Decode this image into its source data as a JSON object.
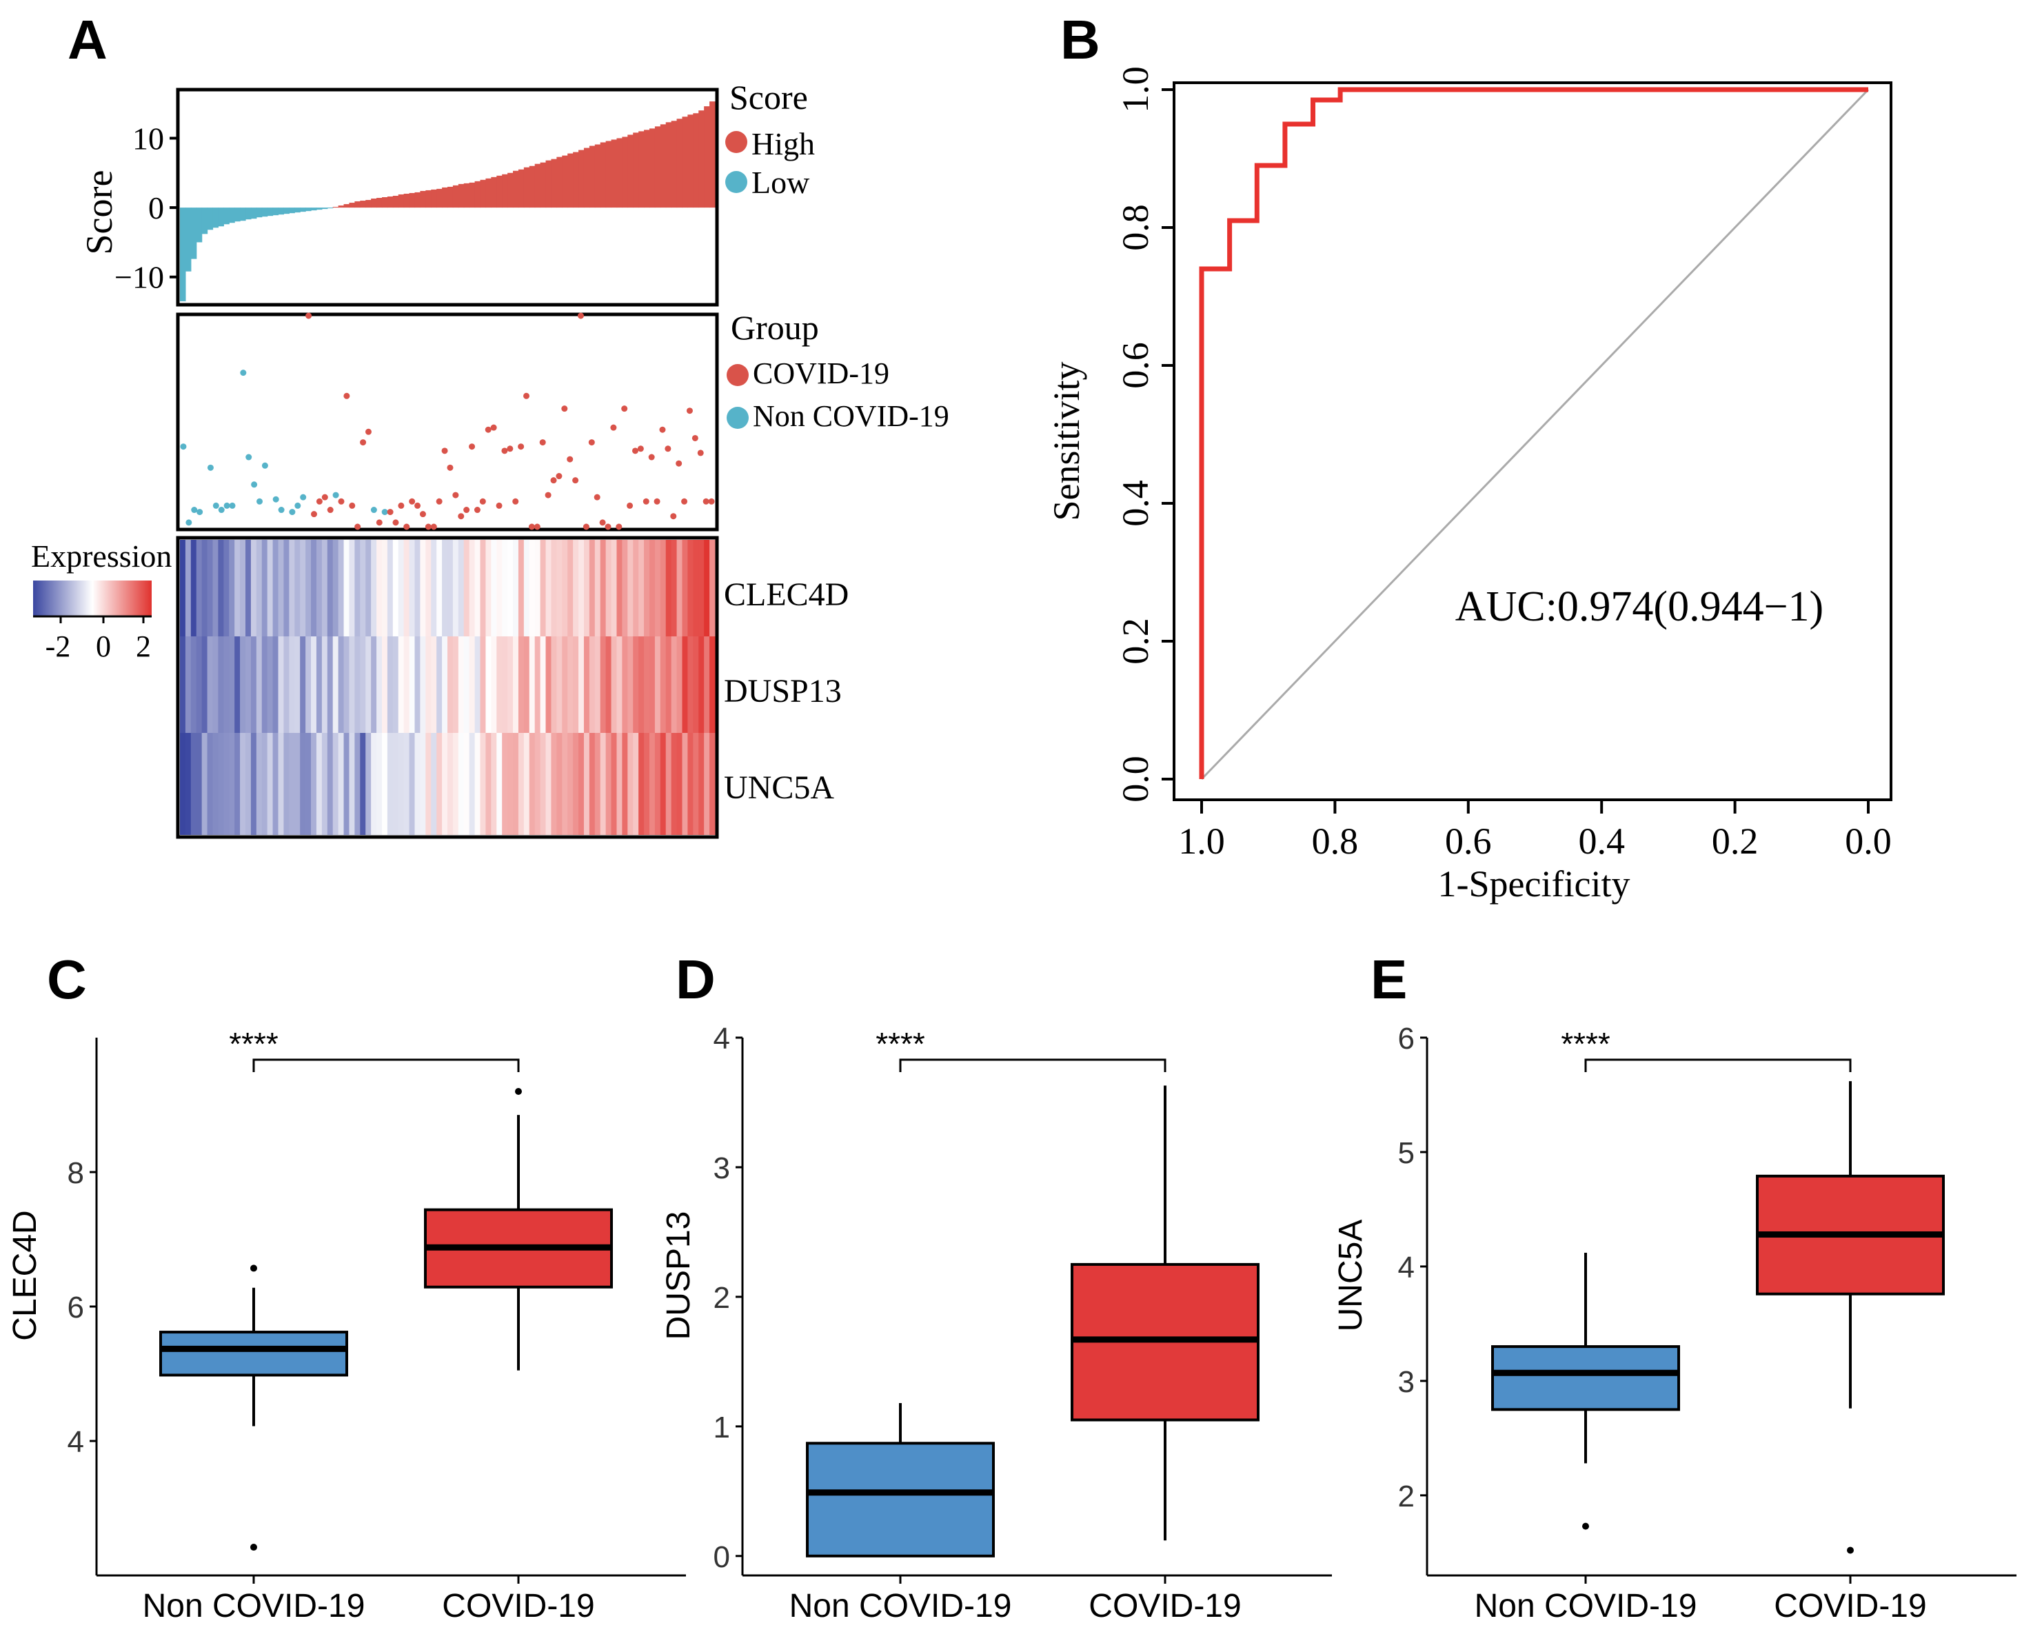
{
  "colors": {
    "high": "#d9534a",
    "low": "#56b3c9",
    "roc": "#e8322e",
    "box_non": "#4f8fc8",
    "box_covid": "#e13a3a",
    "heat_low": "#3a46a0",
    "heat_mid": "#ffffff",
    "heat_high": "#e0322e"
  },
  "panel_labels": [
    "A",
    "B",
    "C",
    "D",
    "E"
  ],
  "chart_data": [
    {
      "id": "A-score",
      "type": "bar",
      "ylabel": "Score",
      "ylim": [
        -14,
        17
      ],
      "yticks": [
        -10,
        0,
        10
      ],
      "values": [
        -13.5,
        -9.2,
        -7.4,
        -5.0,
        -3.8,
        -3.2,
        -2.9,
        -2.7,
        -2.4,
        -2.2,
        -2.0,
        -1.9,
        -1.7,
        -1.6,
        -1.4,
        -1.3,
        -1.2,
        -1.1,
        -1.0,
        -0.9,
        -0.8,
        -0.7,
        -0.6,
        -0.5,
        -0.4,
        -0.3,
        -0.2,
        -0.1,
        0.1,
        0.3,
        0.5,
        0.7,
        0.9,
        1.0,
        1.1,
        1.3,
        1.4,
        1.5,
        1.6,
        1.7,
        1.9,
        2.0,
        2.1,
        2.2,
        2.4,
        2.5,
        2.6,
        2.7,
        2.9,
        3.0,
        3.2,
        3.4,
        3.5,
        3.6,
        3.8,
        4.0,
        4.2,
        4.4,
        4.6,
        4.8,
        5.0,
        5.3,
        5.5,
        5.8,
        6.0,
        6.3,
        6.5,
        6.8,
        7.0,
        7.3,
        7.5,
        7.8,
        8.0,
        8.3,
        8.6,
        8.9,
        9.1,
        9.4,
        9.6,
        9.8,
        10.0,
        10.2,
        10.5,
        10.8,
        11.0,
        11.2,
        11.4,
        11.7,
        12.0,
        12.3,
        12.5,
        12.8,
        13.1,
        13.4,
        13.6,
        14.0,
        14.6,
        15.3
      ],
      "legend": {
        "title": "Score",
        "entries": [
          "High",
          "Low"
        ]
      }
    },
    {
      "id": "A-group",
      "type": "scatter",
      "legend": {
        "title": "Group",
        "entries": [
          "COVID-19",
          "Non COVID-19"
        ]
      },
      "non_covid_points": [
        [
          0,
          0.38
        ],
        [
          1,
          0.02
        ],
        [
          2,
          0.08
        ],
        [
          3,
          0.07
        ],
        [
          5,
          0.28
        ],
        [
          6,
          0.1
        ],
        [
          7,
          0.08
        ],
        [
          8,
          0.1
        ],
        [
          9,
          0.1
        ],
        [
          11,
          0.73
        ],
        [
          12,
          0.33
        ],
        [
          13,
          0.2
        ],
        [
          14,
          0.12
        ],
        [
          15,
          0.29
        ],
        [
          17,
          0.13
        ],
        [
          18,
          0.08
        ],
        [
          20,
          0.07
        ],
        [
          21,
          0.1
        ],
        [
          22,
          0.14
        ],
        [
          28,
          0.15
        ],
        [
          35,
          0.08
        ],
        [
          37,
          0.07
        ]
      ],
      "covid_points": [
        [
          23,
          1.0
        ],
        [
          24,
          0.06
        ],
        [
          25,
          0.12
        ],
        [
          26,
          0.14
        ],
        [
          27,
          0.08
        ],
        [
          29,
          0.12
        ],
        [
          30,
          0.62
        ],
        [
          31,
          0.1
        ],
        [
          32,
          0.0
        ],
        [
          33,
          0.4
        ],
        [
          34,
          0.45
        ],
        [
          36,
          0.02
        ],
        [
          38,
          0.07
        ],
        [
          39,
          0.02
        ],
        [
          40,
          0.1
        ],
        [
          41,
          0.0
        ],
        [
          42,
          0.12
        ],
        [
          43,
          0.1
        ],
        [
          44,
          0.06
        ],
        [
          45,
          0.0
        ],
        [
          46,
          0.0
        ],
        [
          47,
          0.12
        ],
        [
          48,
          0.36
        ],
        [
          49,
          0.28
        ],
        [
          50,
          0.15
        ],
        [
          51,
          0.05
        ],
        [
          52,
          0.08
        ],
        [
          53,
          0.38
        ],
        [
          54,
          0.08
        ],
        [
          55,
          0.12
        ],
        [
          56,
          0.46
        ],
        [
          57,
          0.47
        ],
        [
          58,
          0.1
        ],
        [
          59,
          0.36
        ],
        [
          60,
          0.37
        ],
        [
          61,
          0.12
        ],
        [
          62,
          0.38
        ],
        [
          63,
          0.62
        ],
        [
          64,
          0.0
        ],
        [
          65,
          0.0
        ],
        [
          66,
          0.4
        ],
        [
          67,
          0.15
        ],
        [
          68,
          0.22
        ],
        [
          69,
          0.24
        ],
        [
          70,
          0.56
        ],
        [
          71,
          0.32
        ],
        [
          72,
          0.22
        ],
        [
          73,
          1.0
        ],
        [
          74,
          0.0
        ],
        [
          75,
          0.4
        ],
        [
          76,
          0.14
        ],
        [
          77,
          0.02
        ],
        [
          78,
          0.0
        ],
        [
          79,
          0.47
        ],
        [
          80,
          0.0
        ],
        [
          81,
          0.56
        ],
        [
          82,
          0.1
        ],
        [
          83,
          0.36
        ],
        [
          84,
          0.37
        ],
        [
          85,
          0.12
        ],
        [
          86,
          0.33
        ],
        [
          87,
          0.12
        ],
        [
          88,
          0.46
        ],
        [
          89,
          0.37
        ],
        [
          90,
          0.05
        ],
        [
          91,
          0.3
        ],
        [
          92,
          0.12
        ],
        [
          93,
          0.55
        ],
        [
          94,
          0.42
        ],
        [
          95,
          0.35
        ],
        [
          96,
          0.12
        ],
        [
          97,
          0.12
        ]
      ]
    },
    {
      "id": "A-heatmap",
      "type": "heatmap",
      "legend": {
        "title": "Expression",
        "ticks": [
          "-2",
          "0",
          "2"
        ]
      },
      "rows": [
        "CLEC4D",
        "DUSP13",
        "UNC5A"
      ],
      "columns": 98,
      "value_range": [
        -2.5,
        2.5
      ]
    },
    {
      "id": "B",
      "type": "line",
      "xlabel": "1-Specificity",
      "ylabel": "Sensitivity",
      "xticks": [
        "1.0",
        "0.8",
        "0.6",
        "0.4",
        "0.2",
        "0.0"
      ],
      "yticks": [
        "0.0",
        "0.2",
        "0.4",
        "0.6",
        "0.8",
        "1.0"
      ],
      "xlim": [
        1.0,
        0.0
      ],
      "ylim": [
        0.0,
        1.0
      ],
      "x": [
        1.0,
        1.0,
        0.958,
        0.958,
        0.917,
        0.917,
        0.875,
        0.875,
        0.833,
        0.833,
        0.792,
        0.792,
        0.0
      ],
      "y": [
        0.0,
        0.74,
        0.74,
        0.81,
        0.81,
        0.89,
        0.89,
        0.95,
        0.95,
        0.985,
        0.985,
        1.0,
        1.0
      ],
      "annotation": "AUC:0.974(0.944−1)"
    },
    {
      "id": "C",
      "type": "box",
      "ylabel": "CLEC4D",
      "categories": [
        "Non COVID-19",
        "COVID-19"
      ],
      "ylim": [
        2.0,
        10.0
      ],
      "yticks": [
        "4",
        "6",
        "8"
      ],
      "significance": "****",
      "boxes": [
        {
          "q1": 4.98,
          "median": 5.37,
          "q3": 5.62,
          "whisker_low": 4.22,
          "whisker_high": 6.28,
          "outliers": [
            6.57,
            2.42
          ]
        },
        {
          "q1": 6.29,
          "median": 6.88,
          "q3": 7.44,
          "whisker_low": 5.05,
          "whisker_high": 8.85,
          "outliers": [
            9.2
          ]
        }
      ]
    },
    {
      "id": "D",
      "type": "box",
      "ylabel": "DUSP13",
      "categories": [
        "Non COVID-19",
        "COVID-19"
      ],
      "ylim": [
        -0.15,
        4.0
      ],
      "yticks": [
        "0",
        "1",
        "2",
        "3",
        "4"
      ],
      "significance": "****",
      "boxes": [
        {
          "q1": 0.0,
          "median": 0.49,
          "q3": 0.87,
          "whisker_low": 0.0,
          "whisker_high": 1.18,
          "outliers": []
        },
        {
          "q1": 1.05,
          "median": 1.67,
          "q3": 2.25,
          "whisker_low": 0.12,
          "whisker_high": 3.63,
          "outliers": []
        }
      ]
    },
    {
      "id": "E",
      "type": "box",
      "ylabel": "UNC5A",
      "categories": [
        "Non COVID-19",
        "COVID-19"
      ],
      "ylim": [
        1.3,
        6.0
      ],
      "yticks": [
        "2",
        "3",
        "4",
        "5",
        "6"
      ],
      "significance": "****",
      "boxes": [
        {
          "q1": 2.75,
          "median": 3.07,
          "q3": 3.3,
          "whisker_low": 2.28,
          "whisker_high": 4.12,
          "outliers": [
            1.73
          ]
        },
        {
          "q1": 3.76,
          "median": 4.28,
          "q3": 4.79,
          "whisker_low": 2.76,
          "whisker_high": 5.62,
          "outliers": [
            1.52
          ]
        }
      ]
    }
  ]
}
